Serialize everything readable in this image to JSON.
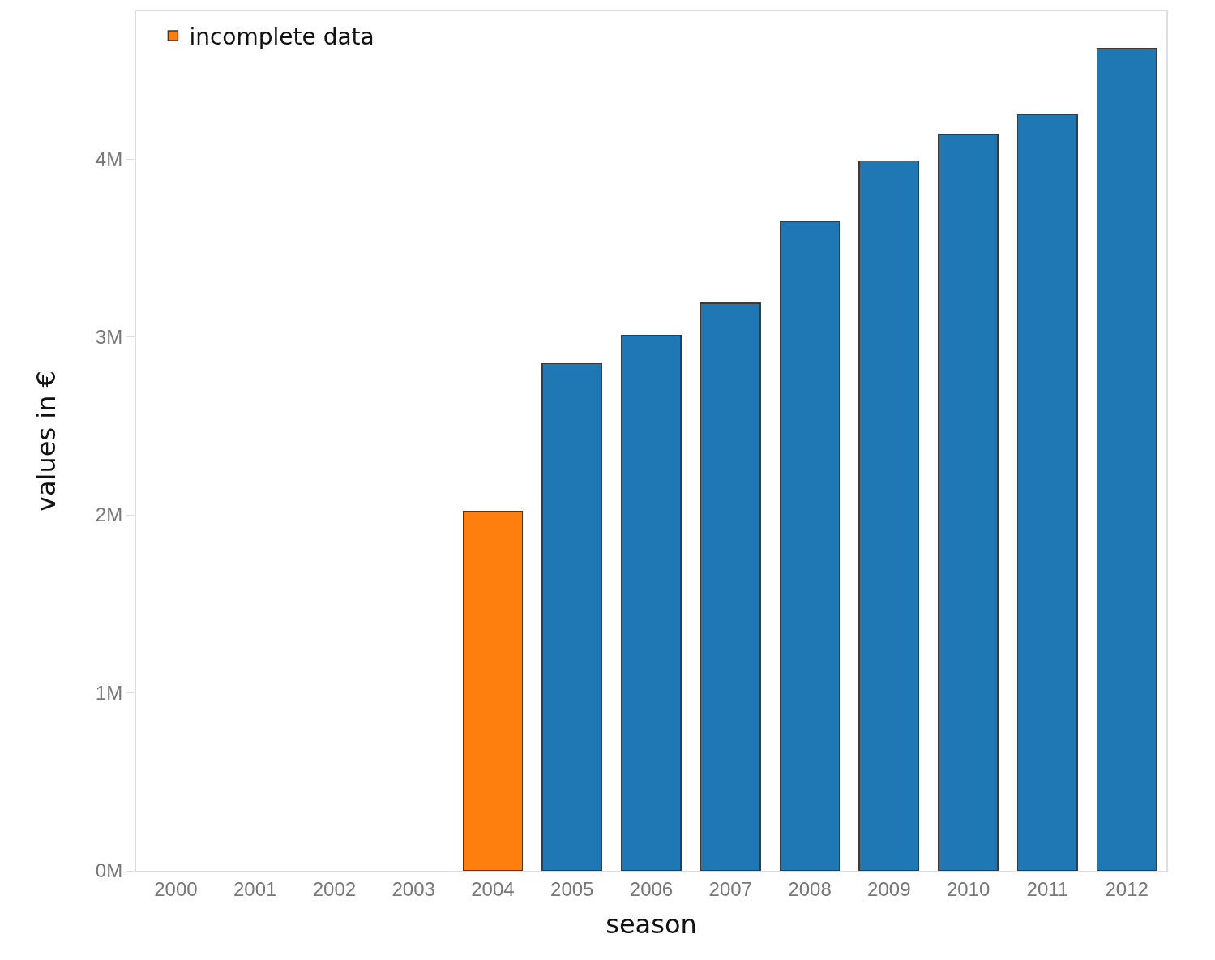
{
  "chart_data": {
    "type": "bar",
    "xlabel": "season",
    "ylabel": "values in €",
    "categories": [
      "2000",
      "2001",
      "2002",
      "2003",
      "2004",
      "2005",
      "2006",
      "2007",
      "2008",
      "2009",
      "2010",
      "2011",
      "2012"
    ],
    "series": [
      {
        "name": "incomplete data",
        "color": "#ff7f0e",
        "values": [
          null,
          null,
          null,
          null,
          2020000,
          null,
          null,
          null,
          null,
          null,
          null,
          null,
          null
        ]
      },
      {
        "color": "#1f77b4",
        "values": [
          null,
          null,
          null,
          null,
          null,
          2850000,
          3010000,
          3190000,
          3650000,
          3990000,
          4140000,
          4250000,
          4620000
        ]
      }
    ],
    "stacked": true,
    "ylim": [
      0,
      4830000
    ],
    "yticks": [
      {
        "value": 0,
        "label": "0M"
      },
      {
        "value": 1000000,
        "label": "1M"
      },
      {
        "value": 2000000,
        "label": "2M"
      },
      {
        "value": 3000000,
        "label": "3M"
      },
      {
        "value": 4000000,
        "label": "4M"
      }
    ],
    "legend": "top left"
  }
}
